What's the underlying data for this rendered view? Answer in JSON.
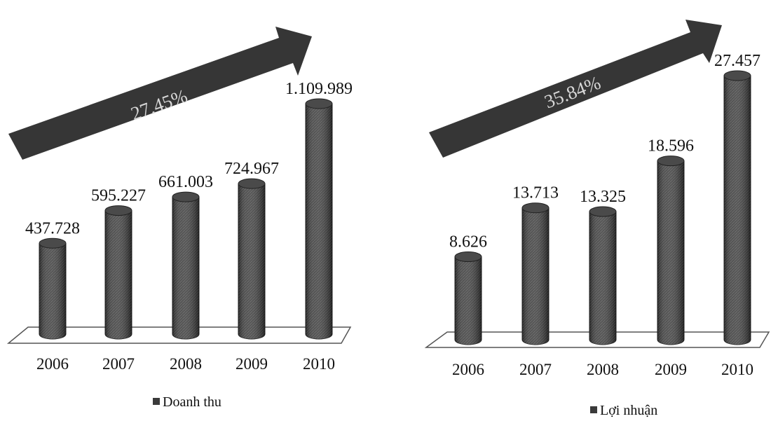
{
  "chart_data": [
    {
      "type": "bar",
      "categories": [
        "2006",
        "2007",
        "2008",
        "2009",
        "2010"
      ],
      "series": [
        {
          "name": "Doanh thu",
          "values": [
            437728,
            595227,
            661003,
            724967,
            1109989
          ]
        }
      ],
      "value_labels": [
        "437.728",
        "595.227",
        "661.003",
        "724.967",
        "1.109.989"
      ],
      "growth_label": "27.45%",
      "legend_position": "bottom",
      "colors": {
        "bar": "#3a3a3a",
        "arrow": "#333333"
      }
    },
    {
      "type": "bar",
      "categories": [
        "2006",
        "2007",
        "2008",
        "2009",
        "2010"
      ],
      "series": [
        {
          "name": "Lợi nhuận",
          "values": [
            8626,
            13713,
            13325,
            18596,
            27457
          ]
        }
      ],
      "value_labels": [
        "8.626",
        "13.713",
        "13.325",
        "18.596",
        "27.457"
      ],
      "growth_label": "35.84%",
      "legend_position": "bottom",
      "colors": {
        "bar": "#3a3a3a",
        "arrow": "#333333"
      }
    }
  ]
}
